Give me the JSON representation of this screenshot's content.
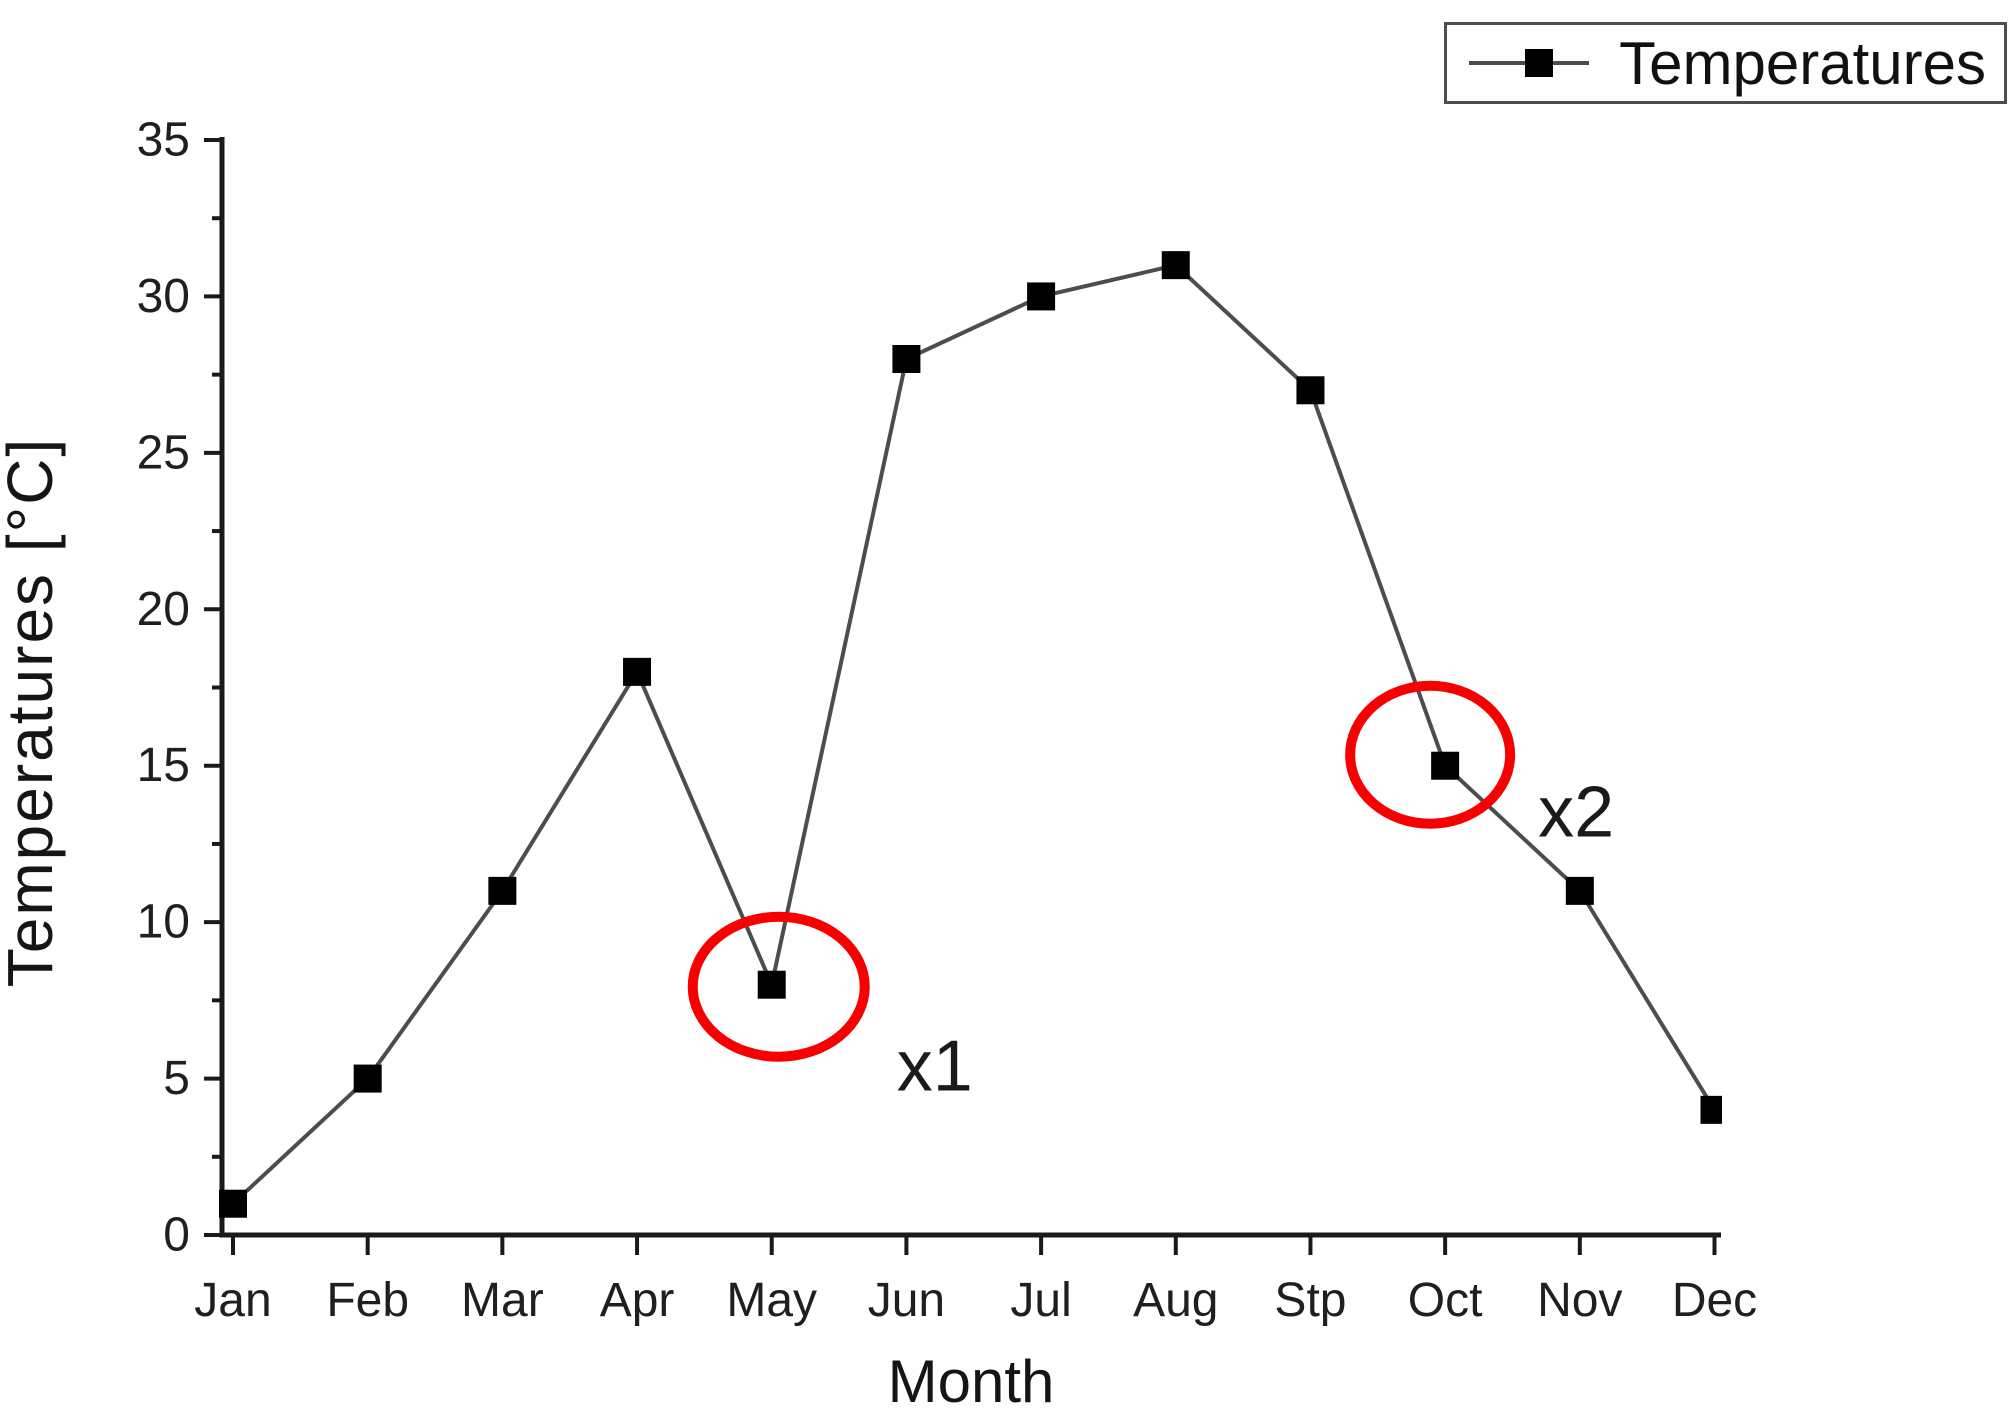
{
  "chart_data": {
    "type": "line",
    "title": "",
    "xlabel": "Month",
    "ylabel": "Temperatures [°C]",
    "categories": [
      "Jan",
      "Feb",
      "Mar",
      "Apr",
      "May",
      "Jun",
      "Jul",
      "Aug",
      "Stp",
      "Oct",
      "Nov",
      "Dec"
    ],
    "series": [
      {
        "name": "Temperatures",
        "values": [
          1,
          5,
          11,
          18,
          8,
          28,
          30,
          31,
          27,
          15,
          11,
          4
        ],
        "marker": "filled-square",
        "line_color": "#4d4d4d",
        "marker_color": "#000000"
      }
    ],
    "ylim": [
      0,
      35
    ],
    "yticks": [
      0,
      5,
      10,
      15,
      20,
      25,
      30,
      35
    ],
    "minor_tick_step": 2.5,
    "grid": false,
    "legend": {
      "position": "top-right",
      "entries": [
        "Temperatures"
      ]
    },
    "annotations": [
      {
        "type": "ellipse-highlight",
        "target_month": "May",
        "target_value": 8,
        "label": "x1",
        "color": "#f60000"
      },
      {
        "type": "ellipse-highlight",
        "target_month": "Oct",
        "target_value": 15,
        "label": "x2",
        "color": "#f60000"
      }
    ],
    "colors": {
      "line": "#4d4d4d",
      "marker": "#000000",
      "axis": "#1a1a1a",
      "annotation": "#f60000",
      "background": "#ffffff"
    }
  }
}
